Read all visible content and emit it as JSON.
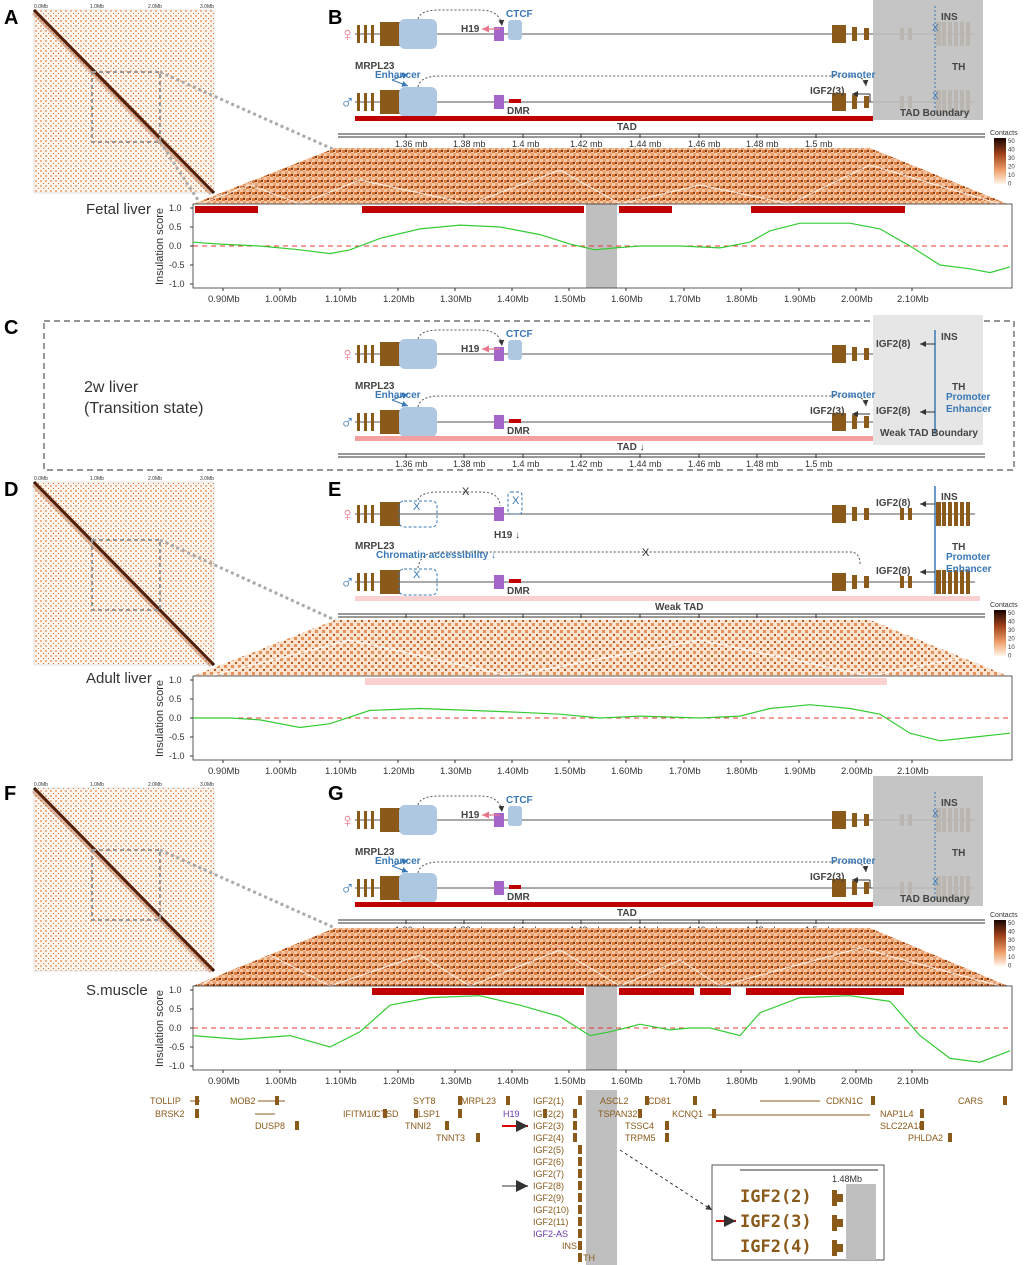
{
  "panels": {
    "A": "A",
    "B": "B",
    "C": "C",
    "D": "D",
    "E": "E",
    "F": "F",
    "G": "G"
  },
  "tissues": {
    "fetal": "Fetal liver",
    "twoWeek1": "2w liver",
    "twoWeek2": "(Transition state)",
    "adult": "Adult liver",
    "muscle": "S.muscle"
  },
  "genes": {
    "mrpl23": "MRPL23",
    "h19": "H19",
    "ctcf": "CTCF",
    "ins": "INS",
    "th": "TH",
    "igf2_3": "IGF2(3)",
    "igf2_8": "IGF2(8)",
    "enhancer": "Enhancer",
    "promoter": "Promoter",
    "promoterEnhancer": "Promoter",
    "enhancer2": "Enhancer",
    "dmr": "DMR",
    "chromatin": "Chromatin accessibility ↓",
    "h19down": "H19 ↓",
    "x": "X"
  },
  "labels": {
    "tad": "TAD",
    "tadDown": "TAD ↓",
    "weakTad": "Weak TAD",
    "tadBoundary": "TAD Boundary",
    "weakTadBoundary": "Weak TAD Boundary",
    "contacts": "Contacts",
    "insulation": "Insulation score",
    "female": "♀",
    "male": "♂"
  },
  "colors": {
    "female": "#e8778b",
    "male": "#3a78b5",
    "gene": "#8b5a1a",
    "h19box": "#a466c9",
    "enhancer": "#adc8e0",
    "tadRed": "#c00000",
    "tadPink": "#f4a0a0",
    "tadLight": "#fbd0d0",
    "boundaryGray": "#bfbfbf",
    "insulationLine": "#33cc33",
    "zeroLine": "#e53935"
  },
  "coordAxis": {
    "ticks": [
      "1.36 mb",
      "1.38 mb",
      "1.4 mb",
      "1.42 mb",
      "1.44 mb",
      "1.46 mb",
      "1.48 mb",
      "1.5 mb"
    ]
  },
  "insulationAxis": {
    "x": [
      "0.90Mb",
      "1.00Mb",
      "1.10Mb",
      "1.20Mb",
      "1.30Mb",
      "1.40Mb",
      "1.50Mb",
      "1.60Mb",
      "1.70Mb",
      "1.80Mb",
      "1.90Mb",
      "2.00Mb",
      "2.10Mb"
    ],
    "y": [
      "1.0",
      "0.5",
      "0.0",
      "-0.5",
      "-1.0"
    ]
  },
  "contactScale": [
    "50",
    "40",
    "30",
    "20",
    "10",
    "0"
  ],
  "hicAxis": {
    "top": [
      "0.0Mb",
      "1.0Mb",
      "2.0Mb",
      "3.0Mb"
    ],
    "left": [
      "0.0Mb",
      "1.0Mb",
      "2.0Mb",
      "3.0Mb"
    ]
  },
  "geneTrack": {
    "row1": [
      "TOLLIP",
      "MOB2",
      "SYT8",
      "MRPL23",
      "IGF2(1)",
      "ASCL2",
      "CD81",
      "CDKN1C",
      "CARS"
    ],
    "row2": [
      "BRSK2",
      "IFITM10",
      "CTSD",
      "LSP1",
      "H19",
      "IGF2(2)",
      "TSPAN32",
      "KCNQ1",
      "NAP1L4"
    ],
    "row3": [
      "DUSP8",
      "TNNI2",
      "IGF2(3)",
      "TSSC4",
      "SLC22A18"
    ],
    "row4": [
      "TNNT3",
      "IGF2(4)",
      "TRPM5",
      "PHLDA2"
    ],
    "igf2list": [
      "IGF2(5)",
      "IGF2(6)",
      "IGF2(7)",
      "IGF2(8)",
      "IGF2(9)",
      "IGF2(10)",
      "IGF2(11)",
      "IGF2-AS",
      "INS",
      "TH"
    ]
  },
  "inset": {
    "coord": "1.48Mb",
    "rows": [
      "IGF2(2)",
      "IGF2(3)",
      "IGF2(4)"
    ]
  }
}
